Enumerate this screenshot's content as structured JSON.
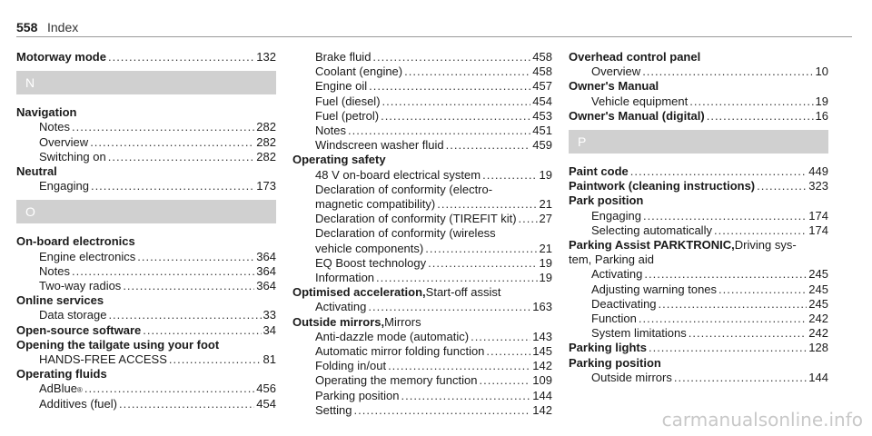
{
  "page": {
    "number": "558",
    "title": "Index"
  },
  "watermark": "carmanualsonline.info",
  "columns": [
    [
      {
        "t": "entry",
        "bold": "Motorway mode",
        "page": "132"
      },
      {
        "t": "section",
        "label": "N"
      },
      {
        "t": "head",
        "bold": "Navigation"
      },
      {
        "t": "sub",
        "text": "Notes",
        "page": "282"
      },
      {
        "t": "sub",
        "text": "Overview",
        "page": "282"
      },
      {
        "t": "sub",
        "text": "Switching on",
        "page": "282"
      },
      {
        "t": "head",
        "bold": "Neutral"
      },
      {
        "t": "sub",
        "text": "Engaging",
        "page": "173"
      },
      {
        "t": "section",
        "label": "O"
      },
      {
        "t": "head",
        "bold": "On-board electronics"
      },
      {
        "t": "sub",
        "text": "Engine electronics",
        "page": "364"
      },
      {
        "t": "sub",
        "text": "Notes",
        "page": "364"
      },
      {
        "t": "sub",
        "text": "Two-way radios",
        "page": "364"
      },
      {
        "t": "head",
        "bold": "Online services"
      },
      {
        "t": "sub",
        "text": "Data storage",
        "page": "33"
      },
      {
        "t": "entry",
        "bold": "Open-source software",
        "page": "34"
      },
      {
        "t": "head",
        "bold": "Opening the tailgate using your foot"
      },
      {
        "t": "sub",
        "text": "HANDS-FREE ACCESS",
        "page": "81"
      },
      {
        "t": "head",
        "bold": "Operating fluids"
      },
      {
        "t": "sub",
        "text": "AdBlue",
        "sup": "®",
        "page": "456"
      },
      {
        "t": "sub",
        "text": "Additives (fuel)",
        "page": "454"
      }
    ],
    [
      {
        "t": "sub",
        "text": "Brake fluid",
        "page": "458"
      },
      {
        "t": "sub",
        "text": "Coolant (engine)",
        "page": "458"
      },
      {
        "t": "sub",
        "text": "Engine oil",
        "page": "457"
      },
      {
        "t": "sub",
        "text": "Fuel (diesel)",
        "page": "454"
      },
      {
        "t": "sub",
        "text": "Fuel (petrol)",
        "page": "453"
      },
      {
        "t": "sub",
        "text": "Notes",
        "page": "451"
      },
      {
        "t": "sub",
        "text": "Windscreen washer fluid",
        "page": "459"
      },
      {
        "t": "head",
        "bold": "Operating safety"
      },
      {
        "t": "sub",
        "text": "48 V on-board electrical system",
        "page": "19"
      },
      {
        "t": "subwrap",
        "text": "Declaration of conformity (electro-"
      },
      {
        "t": "sub",
        "text": "magnetic compatibility)",
        "page": "21"
      },
      {
        "t": "sub",
        "text": "Declaration of conformity (TIREFIT kit)",
        "page": "27"
      },
      {
        "t": "subwrap",
        "text": "Declaration of conformity (wireless"
      },
      {
        "t": "sub",
        "text": "vehicle components)",
        "page": "21"
      },
      {
        "t": "sub",
        "text": "EQ Boost technology",
        "page": "19"
      },
      {
        "t": "sub",
        "text": "Information",
        "page": "19"
      },
      {
        "t": "head",
        "bold": "Optimised acceleration,",
        "rest": " Start-off assist"
      },
      {
        "t": "sub",
        "text": "Activating",
        "page": "163"
      },
      {
        "t": "head",
        "bold": "Outside mirrors,",
        "rest": " Mirrors"
      },
      {
        "t": "sub",
        "text": "Anti-dazzle mode (automatic)",
        "page": "143"
      },
      {
        "t": "sub",
        "text": "Automatic mirror folding function",
        "page": "145"
      },
      {
        "t": "sub",
        "text": "Folding in/out",
        "page": "142"
      },
      {
        "t": "sub",
        "text": "Operating the memory function",
        "page": "109"
      },
      {
        "t": "sub",
        "text": "Parking position",
        "page": "144"
      },
      {
        "t": "sub",
        "text": "Setting",
        "page": "142"
      }
    ],
    [
      {
        "t": "head",
        "bold": "Overhead control panel"
      },
      {
        "t": "sub",
        "text": "Overview",
        "page": "10"
      },
      {
        "t": "head",
        "bold": "Owner's Manual"
      },
      {
        "t": "sub",
        "text": "Vehicle equipment",
        "page": "19"
      },
      {
        "t": "entry",
        "bold": "Owner's Manual (digital)",
        "page": "16"
      },
      {
        "t": "section",
        "label": "P"
      },
      {
        "t": "entry",
        "bold": "Paint code",
        "page": "449"
      },
      {
        "t": "entry",
        "bold": "Paintwork (cleaning instructions)",
        "page": "323"
      },
      {
        "t": "head",
        "bold": "Park position"
      },
      {
        "t": "sub",
        "text": "Engaging",
        "page": "174"
      },
      {
        "t": "sub",
        "text": "Selecting automatically",
        "page": "174"
      },
      {
        "t": "head",
        "bold": "Parking Assist PARKTRONIC,",
        "rest": " Driving sys-"
      },
      {
        "t": "plain",
        "text": "tem, Parking aid"
      },
      {
        "t": "sub",
        "text": "Activating",
        "page": "245"
      },
      {
        "t": "sub",
        "text": "Adjusting warning tones",
        "page": "245"
      },
      {
        "t": "sub",
        "text": "Deactivating",
        "page": "245"
      },
      {
        "t": "sub",
        "text": "Function",
        "page": "242"
      },
      {
        "t": "sub",
        "text": "System limitations",
        "page": "242"
      },
      {
        "t": "entry",
        "bold": "Parking lights",
        "page": "128"
      },
      {
        "t": "head",
        "bold": "Parking position"
      },
      {
        "t": "sub",
        "text": "Outside mirrors",
        "page": "144"
      }
    ]
  ]
}
